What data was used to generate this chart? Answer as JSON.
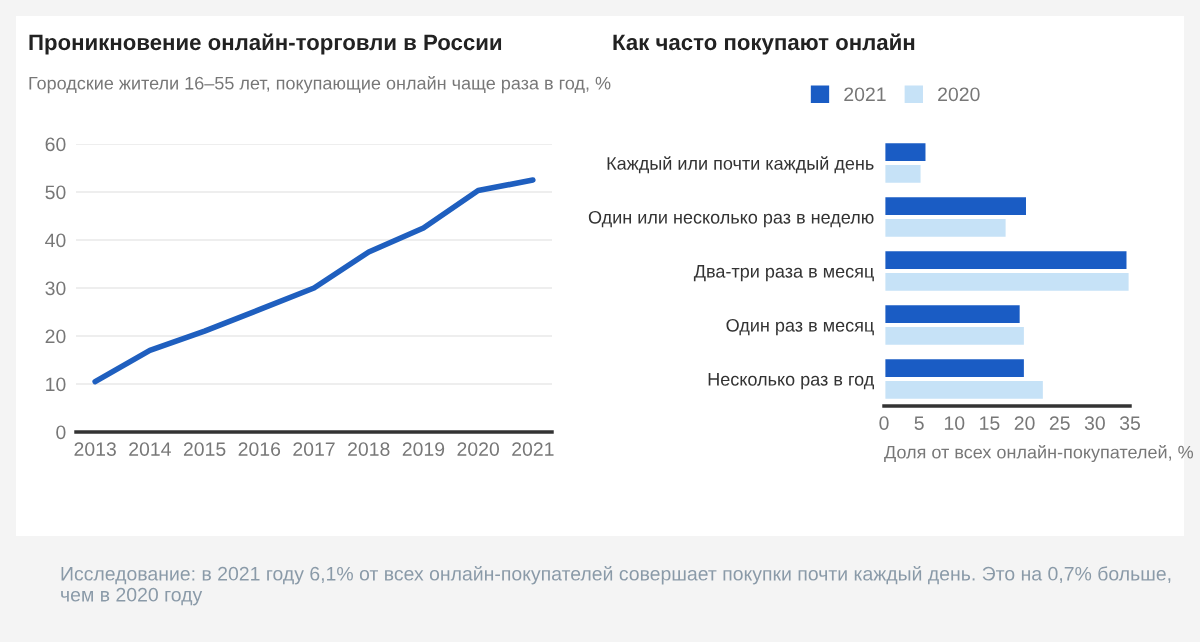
{
  "chart_data": [
    {
      "type": "line",
      "title": "Проникновение онлайн-торговли в России",
      "subtitle": "Городские жители 16–55 лет, покупающие онлайн чаще раза в год, %",
      "categories": [
        "2013",
        "2014",
        "2015",
        "2016",
        "2017",
        "2018",
        "2019",
        "2020",
        "2021"
      ],
      "series": [
        {
          "color": "#1f5fbf",
          "values": [
            10.5,
            17,
            21,
            25.5,
            30,
            37.5,
            42.5,
            50.3,
            52.5
          ]
        }
      ],
      "ylim": [
        0,
        60
      ],
      "yticks": [
        0,
        10,
        20,
        30,
        40,
        50,
        60
      ],
      "grid": "y",
      "marker": "none",
      "line_style": "solid"
    },
    {
      "type": "bar",
      "orientation": "horizontal",
      "title": "Как часто покупают онлайн",
      "xlabel": "Доля от всех онлайн-покупателей, %",
      "categories": [
        "Каждый или почти каждый день",
        "Один или несколько раз в неделю",
        "Два-три раза в месяц",
        "Один раз в месяц",
        "Несколько раз в год"
      ],
      "series": [
        {
          "name": "2021",
          "color": "#1a5cc4",
          "values": [
            6.1,
            20.4,
            34.7,
            19.5,
            20.1
          ]
        },
        {
          "name": "2020",
          "color": "#c6e2f7",
          "values": [
            5.4,
            17.5,
            35,
            20.1,
            22.8
          ]
        }
      ],
      "xlim": [
        0,
        35
      ],
      "xticks": [
        0,
        5,
        10,
        15,
        20,
        25,
        30,
        35
      ],
      "grid": false,
      "legend": "top",
      "annotations": [
        "Исследование: в 2021 году 6,1% от всех онлайн-покупателей совершает покупки почти каждый день. Это на 0,7% больше, чем в 2020 году"
      ]
    }
  ]
}
